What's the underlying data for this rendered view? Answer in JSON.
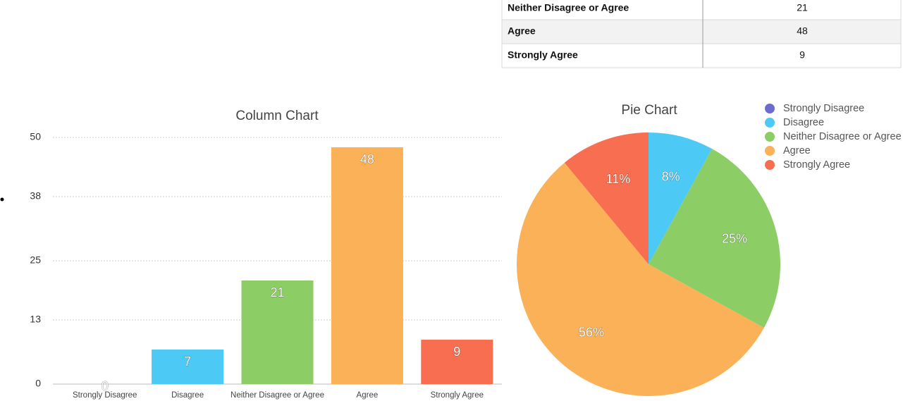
{
  "table": {
    "rows": [
      [
        "Neither Disagree or Agree",
        21
      ],
      [
        "Agree",
        48
      ],
      [
        "Strongly Agree",
        9
      ]
    ]
  },
  "chart_data": [
    {
      "type": "bar",
      "title": "Column Chart",
      "categories": [
        "Strongly Disagree",
        "Disagree",
        "Neither Disagree or Agree",
        "Agree",
        "Strongly Agree"
      ],
      "values": [
        0,
        7,
        21,
        48,
        9
      ],
      "colors": [
        "#6b6bd0",
        "#4dc9f6",
        "#8ccd65",
        "#fbb157",
        "#f76e50"
      ],
      "ylim": [
        0,
        50
      ],
      "yticks": [
        0,
        13,
        25,
        38,
        50
      ],
      "grid": true
    },
    {
      "type": "pie",
      "title": "Pie Chart",
      "categories": [
        "Strongly Disagree",
        "Disagree",
        "Neither Disagree or Agree",
        "Agree",
        "Strongly Agree"
      ],
      "values": [
        0,
        8,
        25,
        56,
        11
      ],
      "value_labels": [
        null,
        "8%",
        "25%",
        "56%",
        "11%"
      ],
      "colors": [
        "#6b6bd0",
        "#4dc9f6",
        "#8ccd65",
        "#fbb157",
        "#f76e50"
      ],
      "legend": "top-right"
    }
  ]
}
